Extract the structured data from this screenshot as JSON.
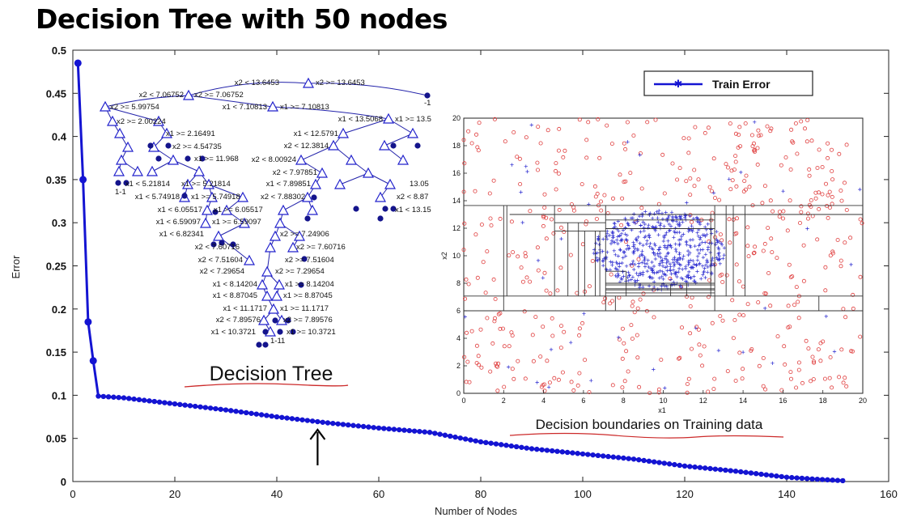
{
  "title": "Decision Tree with 50 nodes",
  "chart_data": {
    "type": "line",
    "xlabel": "Number of Nodes",
    "ylabel": "Error",
    "xlim": [
      0,
      160
    ],
    "ylim": [
      0,
      0.5
    ],
    "xticks": [
      "0",
      "20",
      "40",
      "60",
      "80",
      "100",
      "120",
      "140",
      "160"
    ],
    "yticks": [
      "0",
      "0.05",
      "0.1",
      "0.15",
      "0.2",
      "0.25",
      "0.3",
      "0.35",
      "0.4",
      "0.45",
      "0.5"
    ],
    "legend": {
      "placement": "top-right",
      "label": "Train Error"
    },
    "series": [
      {
        "name": "Train Error",
        "color": "#1414d2",
        "x": [
          1,
          2,
          3,
          4,
          5,
          10,
          20,
          30,
          40,
          50,
          60,
          70,
          80,
          90,
          100,
          110,
          120,
          130,
          140,
          145,
          151
        ],
        "y": [
          0.485,
          0.35,
          0.185,
          0.14,
          0.099,
          0.097,
          0.09,
          0.083,
          0.075,
          0.068,
          0.062,
          0.057,
          0.046,
          0.038,
          0.032,
          0.026,
          0.018,
          0.012,
          0.005,
          0.003,
          0.001
        ]
      }
    ],
    "annotations": {
      "tree_caption": "Decision Tree",
      "boundary_caption": "Decision boundaries on Training data",
      "arrow_at_x": 48
    },
    "inset_scatter": {
      "xlabel": "x1",
      "ylabel": "x2",
      "xlim": [
        0,
        20
      ],
      "ylim": [
        0,
        20
      ],
      "xticks": [
        "0",
        "2",
        "4",
        "6",
        "8",
        "10",
        "12",
        "14",
        "16",
        "18",
        "20"
      ],
      "yticks": [
        "0",
        "2",
        "4",
        "6",
        "8",
        "10",
        "12",
        "14",
        "16",
        "18",
        "20"
      ]
    },
    "tree_labels": [
      "x2 < 13.6453",
      "x2 >= 13.6453",
      "x2 < 7.06752",
      "x2 >= 7.06752",
      "x1 < 7.10813",
      "x1 >= 7.10813",
      "x2 >= 5.99754",
      "x2 >= 2.00224",
      "x1 < 13.5068",
      "x1 >= 13.5",
      "x1 >= 2.16491",
      "x1 < 12.5791",
      "x2 >= 4.54735",
      "x2 < 12.3814",
      "x1 >= 11.968",
      "x2 < 8.00924",
      "x2 < 7.97851",
      "x1 < 5.21814",
      "x1 >= 5.21814",
      "x1 < 5.74918",
      "x1 >= 5.74918",
      "x2 < 7.88302",
      "x1 < 7.89851",
      "x1 < 6.05517",
      "x1 >= 6.05517",
      "x2 < 8.87",
      "x1 < 6.59097",
      "x1 >= 6.59097",
      "x1 < 13.15",
      "x1 < 6.82341",
      "x2 >= 7.24906",
      "x2 < 7.60716",
      "x2 >= 7.60716",
      "x2 < 7.51604",
      "x2 >= 7.51604",
      "x2 < 7.29654",
      "x2 >= 7.29654",
      "x1 < 8.14204",
      "x1 >= 8.14204",
      "x1 < 8.87045",
      "x1 >= 8.87045",
      "x1 < 11.1717",
      "x1 >= 11.1717",
      "x2 < 7.89576",
      "x2 >= 7.89576",
      "x1 < 10.3721",
      "x1 >= 10.3721",
      "1-1",
      "-1",
      "1-11",
      "13.05"
    ]
  }
}
